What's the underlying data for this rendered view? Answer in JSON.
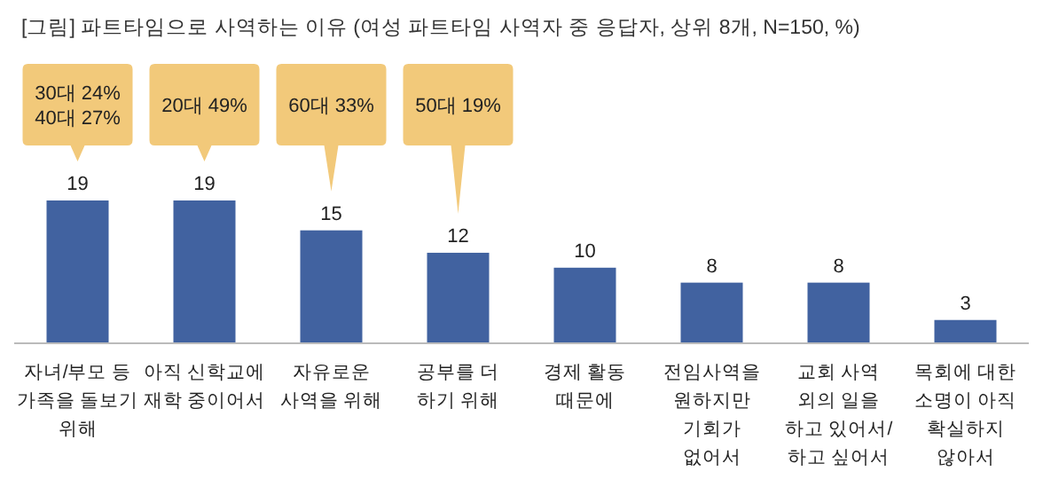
{
  "chart_data": {
    "type": "bar",
    "title": "[그림] 파트타임으로 사역하는 이유 (여성 파트타임 사역자 중 응답자, 상위 8개, N=150, %)",
    "categories": [
      "자녀/부모 등\n가족을 돌보기\n위해",
      "아직 신학교에\n재학 중이어서",
      "자유로운\n사역을 위해",
      "공부를 더\n하기 위해",
      "경제 활동\n때문에",
      "전임사역을\n원하지만\n기회가\n없어서",
      "교회 사역\n외의 일을\n하고 있어서/\n하고 싶어서",
      "목회에 대한\n소명이 아직\n확실하지\n않아서"
    ],
    "values": [
      19,
      19,
      15,
      12,
      10,
      8,
      8,
      3
    ],
    "color": "#4162a0",
    "data_labels": true,
    "annotations": [
      "30대 24%\n40대 27%",
      "20대 49%",
      "60대 33%",
      "50대 19%"
    ]
  }
}
